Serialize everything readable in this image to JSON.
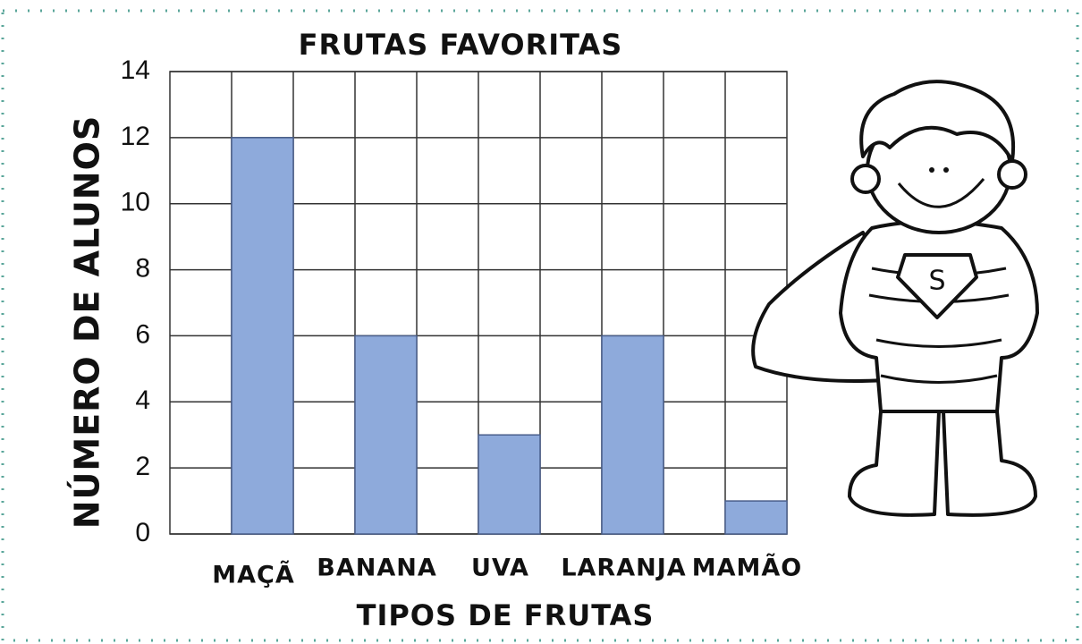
{
  "chart_data": {
    "type": "bar",
    "title": "FRUTAS FAVORITAS",
    "x_label": "TIPOS DE FRUTAS",
    "y_label": "NÚMERO DE ALUNOS",
    "categories": [
      "MAÇÃ",
      "BANANA",
      "UVA",
      "LARANJA",
      "MAMÃO"
    ],
    "values": [
      12,
      6,
      3,
      6,
      1
    ],
    "color": "#8eaadb",
    "ylim": [
      0,
      14
    ],
    "yticks": [
      0,
      2,
      4,
      6,
      8,
      10,
      12,
      14
    ],
    "grid": true
  }
}
